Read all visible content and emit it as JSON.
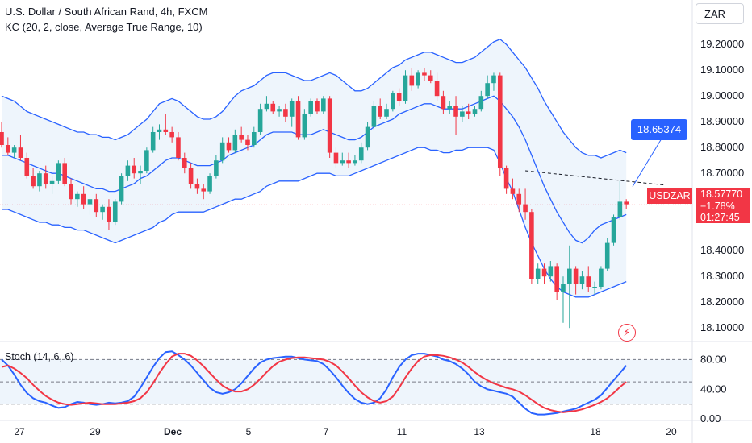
{
  "header": {
    "title": "U.S. Dollar / South African Rand, 4h, FXCM",
    "indicator_label": "KC (20, 2, close, Average True Range, 10)",
    "oscillator_label": "Stoch (14, 6, 6)",
    "currency_button": "ZAR"
  },
  "price_labels": {
    "symbol": "USDZAR",
    "last_price": "18.57770",
    "change": "−1.78%",
    "countdown": "01:27:45",
    "callout_value": "18.65374"
  },
  "colors": {
    "up": "#26a69a",
    "down": "#f23645",
    "band": "#2962ff",
    "band_fill": "#e8f1fb",
    "stoch_k": "#2962ff",
    "stoch_d": "#f23645"
  },
  "chart_data": [
    {
      "type": "candlestick",
      "title": "U.S. Dollar / South African Rand, 4h, FXCM",
      "y_ticks": [
        "19.20000",
        "19.10000",
        "19.00000",
        "18.90000",
        "18.80000",
        "18.70000",
        "18.60000",
        "18.40000",
        "18.30000",
        "18.20000",
        "18.10000"
      ],
      "x_ticks": [
        "27",
        "29",
        "Dec",
        "5",
        "7",
        "11",
        "13",
        "18",
        "20"
      ],
      "ylim": [
        18.06,
        19.26
      ],
      "current_price": 18.5777,
      "trendline_points": [
        18.71,
        18.655
      ],
      "candles": [
        [
          18.86,
          18.9,
          18.8,
          18.81
        ],
        [
          18.81,
          18.84,
          18.77,
          18.78
        ],
        [
          18.78,
          18.81,
          18.76,
          18.8
        ],
        [
          18.8,
          18.85,
          18.75,
          18.76
        ],
        [
          18.76,
          18.78,
          18.68,
          18.69
        ],
        [
          18.69,
          18.72,
          18.64,
          18.65
        ],
        [
          18.65,
          18.71,
          18.63,
          18.7
        ],
        [
          18.7,
          18.73,
          18.64,
          18.66
        ],
        [
          18.66,
          18.69,
          18.62,
          18.67
        ],
        [
          18.67,
          18.75,
          18.66,
          18.74
        ],
        [
          18.74,
          18.76,
          18.65,
          18.66
        ],
        [
          18.66,
          18.68,
          18.58,
          18.6
        ],
        [
          18.6,
          18.63,
          18.57,
          18.62
        ],
        [
          18.62,
          18.65,
          18.56,
          18.58
        ],
        [
          18.58,
          18.61,
          18.54,
          18.6
        ],
        [
          18.6,
          18.62,
          18.53,
          18.55
        ],
        [
          18.55,
          18.58,
          18.52,
          18.57
        ],
        [
          18.57,
          18.6,
          18.48,
          18.51
        ],
        [
          18.51,
          18.6,
          18.5,
          18.59
        ],
        [
          18.59,
          18.7,
          18.58,
          18.69
        ],
        [
          18.69,
          18.75,
          18.67,
          18.73
        ],
        [
          18.73,
          18.76,
          18.68,
          18.7
        ],
        [
          18.7,
          18.73,
          18.66,
          18.71
        ],
        [
          18.71,
          18.8,
          18.7,
          18.79
        ],
        [
          18.79,
          18.88,
          18.78,
          18.86
        ],
        [
          18.86,
          18.89,
          18.83,
          18.87
        ],
        [
          18.87,
          18.93,
          18.85,
          18.86
        ],
        [
          18.86,
          18.88,
          18.82,
          18.84
        ],
        [
          18.84,
          18.86,
          18.75,
          18.76
        ],
        [
          18.76,
          18.78,
          18.7,
          18.72
        ],
        [
          18.72,
          18.74,
          18.64,
          18.66
        ],
        [
          18.66,
          18.68,
          18.62,
          18.64
        ],
        [
          18.64,
          18.66,
          18.6,
          18.63
        ],
        [
          18.63,
          18.7,
          18.62,
          18.69
        ],
        [
          18.69,
          18.77,
          18.68,
          18.75
        ],
        [
          18.75,
          18.84,
          18.74,
          18.82
        ],
        [
          18.82,
          18.84,
          18.78,
          18.79
        ],
        [
          18.79,
          18.87,
          18.78,
          18.85
        ],
        [
          18.85,
          18.88,
          18.82,
          18.83
        ],
        [
          18.83,
          18.85,
          18.79,
          18.81
        ],
        [
          18.81,
          18.88,
          18.8,
          18.86
        ],
        [
          18.86,
          18.97,
          18.85,
          18.95
        ],
        [
          18.95,
          19.0,
          18.94,
          18.97
        ],
        [
          18.97,
          18.98,
          18.93,
          18.94
        ],
        [
          18.94,
          18.96,
          18.92,
          18.95
        ],
        [
          18.95,
          18.97,
          18.9,
          18.92
        ],
        [
          18.92,
          18.99,
          18.88,
          18.98
        ],
        [
          18.98,
          19.0,
          18.83,
          18.84
        ],
        [
          18.84,
          18.95,
          18.83,
          18.93
        ],
        [
          18.93,
          18.99,
          18.92,
          18.98
        ],
        [
          18.98,
          18.99,
          18.93,
          18.94
        ],
        [
          18.94,
          19.0,
          18.93,
          18.99
        ],
        [
          18.99,
          19.0,
          18.76,
          18.78
        ],
        [
          18.78,
          18.8,
          18.72,
          18.74
        ],
        [
          18.74,
          18.78,
          18.73,
          18.75
        ],
        [
          18.75,
          18.78,
          18.72,
          18.74
        ],
        [
          18.74,
          18.77,
          18.73,
          18.75
        ],
        [
          18.75,
          18.82,
          18.74,
          18.8
        ],
        [
          18.8,
          18.9,
          18.79,
          18.88
        ],
        [
          18.88,
          18.98,
          18.87,
          18.96
        ],
        [
          18.96,
          18.99,
          18.91,
          18.92
        ],
        [
          18.92,
          18.97,
          18.91,
          18.95
        ],
        [
          18.95,
          19.02,
          18.94,
          19.01
        ],
        [
          19.01,
          19.03,
          18.96,
          18.98
        ],
        [
          18.98,
          19.1,
          18.97,
          19.08
        ],
        [
          19.08,
          19.11,
          19.02,
          19.04
        ],
        [
          19.04,
          19.1,
          19.03,
          19.09
        ],
        [
          19.09,
          19.11,
          19.06,
          19.08
        ],
        [
          19.08,
          19.1,
          19.05,
          19.06
        ],
        [
          19.06,
          19.09,
          18.98,
          19.0
        ],
        [
          19.0,
          19.02,
          18.93,
          18.95
        ],
        [
          18.95,
          18.98,
          18.93,
          18.96
        ],
        [
          18.96,
          19.0,
          18.85,
          18.92
        ],
        [
          18.92,
          18.96,
          18.9,
          18.94
        ],
        [
          18.94,
          18.97,
          18.91,
          18.93
        ],
        [
          18.93,
          18.96,
          18.92,
          18.95
        ],
        [
          18.95,
          19.02,
          18.94,
          19.0
        ],
        [
          19.0,
          19.08,
          18.99,
          19.05
        ],
        [
          19.05,
          19.09,
          19.02,
          19.08
        ],
        [
          19.08,
          19.09,
          18.69,
          18.72
        ],
        [
          18.72,
          18.73,
          18.62,
          18.64
        ],
        [
          18.64,
          18.68,
          18.6,
          18.62
        ],
        [
          18.62,
          18.64,
          18.55,
          18.58
        ],
        [
          18.58,
          18.64,
          18.52,
          18.55
        ],
        [
          18.55,
          18.56,
          18.27,
          18.29
        ],
        [
          18.29,
          18.35,
          18.27,
          18.33
        ],
        [
          18.33,
          18.35,
          18.27,
          18.3
        ],
        [
          18.3,
          18.36,
          18.28,
          18.34
        ],
        [
          18.34,
          18.35,
          18.21,
          18.24
        ],
        [
          18.24,
          18.3,
          18.12,
          18.27
        ],
        [
          18.27,
          18.42,
          18.1,
          18.33
        ],
        [
          18.33,
          18.34,
          18.23,
          18.27
        ],
        [
          18.27,
          18.32,
          18.25,
          18.3
        ],
        [
          18.3,
          18.34,
          18.24,
          18.26
        ],
        [
          18.26,
          18.28,
          18.23,
          18.26
        ],
        [
          18.26,
          18.34,
          18.25,
          18.33
        ],
        [
          18.33,
          18.45,
          18.32,
          18.43
        ],
        [
          18.43,
          18.54,
          18.42,
          18.53
        ],
        [
          18.53,
          18.67,
          18.52,
          18.59
        ],
        [
          18.59,
          18.6,
          18.56,
          18.58
        ]
      ],
      "keltner": {
        "upper": [
          19.0,
          18.99,
          18.98,
          18.96,
          18.94,
          18.93,
          18.92,
          18.91,
          18.9,
          18.89,
          18.88,
          18.87,
          18.86,
          18.86,
          18.85,
          18.85,
          18.84,
          18.84,
          18.83,
          18.84,
          18.85,
          18.87,
          18.89,
          18.91,
          18.94,
          18.97,
          18.98,
          18.99,
          18.98,
          18.96,
          18.94,
          18.92,
          18.91,
          18.91,
          18.92,
          18.94,
          18.97,
          19.0,
          19.02,
          19.03,
          19.04,
          19.06,
          19.08,
          19.09,
          19.09,
          19.09,
          19.08,
          19.07,
          19.06,
          19.06,
          19.07,
          19.08,
          19.09,
          19.08,
          19.06,
          19.04,
          19.02,
          19.02,
          19.03,
          19.05,
          19.07,
          19.09,
          19.11,
          19.12,
          19.14,
          19.15,
          19.16,
          19.17,
          19.17,
          19.16,
          19.15,
          19.14,
          19.13,
          19.13,
          19.14,
          19.15,
          19.17,
          19.19,
          19.21,
          19.22,
          19.2,
          19.17,
          19.14,
          19.11,
          19.07,
          19.03,
          18.98,
          18.94,
          18.9,
          18.86,
          18.83,
          18.8,
          18.78,
          18.77,
          18.77,
          18.76,
          18.77,
          18.78,
          18.79,
          18.78
        ],
        "middle": [
          18.77,
          18.77,
          18.76,
          18.75,
          18.74,
          18.73,
          18.72,
          18.71,
          18.7,
          18.7,
          18.69,
          18.68,
          18.67,
          18.66,
          18.65,
          18.64,
          18.64,
          18.63,
          18.63,
          18.64,
          18.65,
          18.66,
          18.68,
          18.69,
          18.71,
          18.73,
          18.75,
          18.76,
          18.76,
          18.75,
          18.74,
          18.73,
          18.73,
          18.73,
          18.74,
          18.75,
          18.77,
          18.78,
          18.79,
          18.8,
          18.81,
          18.83,
          18.85,
          18.86,
          18.86,
          18.86,
          18.86,
          18.85,
          18.85,
          18.85,
          18.86,
          18.87,
          18.86,
          18.85,
          18.84,
          18.83,
          18.83,
          18.84,
          18.86,
          18.88,
          18.89,
          18.9,
          18.91,
          18.93,
          18.94,
          18.95,
          18.96,
          18.97,
          18.97,
          18.96,
          18.95,
          18.95,
          18.95,
          18.95,
          18.96,
          18.97,
          18.98,
          18.99,
          19.0,
          18.98,
          18.95,
          18.92,
          18.88,
          18.83,
          18.77,
          18.71,
          18.65,
          18.6,
          18.55,
          18.51,
          18.47,
          18.44,
          18.43,
          18.45,
          18.48,
          18.5,
          18.51,
          18.52,
          18.53,
          18.54
        ],
        "lower": [
          18.56,
          18.56,
          18.55,
          18.54,
          18.53,
          18.52,
          18.51,
          18.51,
          18.5,
          18.5,
          18.49,
          18.49,
          18.48,
          18.48,
          18.47,
          18.46,
          18.45,
          18.44,
          18.43,
          18.44,
          18.45,
          18.46,
          18.47,
          18.48,
          18.49,
          18.51,
          18.52,
          18.54,
          18.55,
          18.55,
          18.55,
          18.55,
          18.55,
          18.56,
          18.57,
          18.58,
          18.59,
          18.6,
          18.6,
          18.61,
          18.62,
          18.63,
          18.65,
          18.66,
          18.67,
          18.67,
          18.67,
          18.67,
          18.68,
          18.69,
          18.7,
          18.7,
          18.7,
          18.69,
          18.69,
          18.69,
          18.7,
          18.71,
          18.72,
          18.73,
          18.74,
          18.75,
          18.76,
          18.77,
          18.78,
          18.79,
          18.8,
          18.8,
          18.79,
          18.79,
          18.78,
          18.78,
          18.79,
          18.79,
          18.8,
          18.8,
          18.8,
          18.8,
          18.79,
          18.74,
          18.68,
          18.63,
          18.56,
          18.49,
          18.43,
          18.38,
          18.33,
          18.29,
          18.26,
          18.24,
          18.23,
          18.22,
          18.22,
          18.22,
          18.23,
          18.24,
          18.25,
          18.26,
          18.27,
          18.28
        ]
      }
    },
    {
      "type": "line",
      "title": "Stoch (14, 6, 6)",
      "y_ticks": [
        "80.00",
        "40.00",
        "0.00"
      ],
      "ylim": [
        -2,
        100
      ],
      "bands": [
        80,
        50,
        20
      ],
      "series": [
        {
          "name": "%K",
          "values": [
            80,
            72,
            60,
            46,
            35,
            28,
            24,
            22,
            18,
            15,
            16,
            20,
            23,
            22,
            20,
            19,
            20,
            22,
            21,
            22,
            24,
            30,
            42,
            56,
            70,
            82,
            90,
            91,
            86,
            80,
            72,
            62,
            52,
            42,
            36,
            34,
            36,
            40,
            48,
            58,
            68,
            76,
            80,
            82,
            83,
            84,
            84,
            82,
            80,
            79,
            78,
            74,
            66,
            56,
            45,
            35,
            27,
            22,
            20,
            22,
            28,
            40,
            56,
            70,
            80,
            86,
            88,
            88,
            86,
            84,
            80,
            78,
            74,
            68,
            60,
            50,
            44,
            40,
            38,
            36,
            34,
            30,
            22,
            14,
            8,
            6,
            6,
            7,
            8,
            10,
            12,
            14,
            18,
            22,
            26,
            32,
            42,
            52,
            62,
            72
          ]
        },
        {
          "name": "%D",
          "values": [
            70,
            72,
            68,
            62,
            55,
            46,
            38,
            31,
            26,
            22,
            20,
            19,
            20,
            21,
            22,
            21,
            20,
            20,
            20,
            21,
            22,
            24,
            28,
            36,
            48,
            62,
            74,
            84,
            88,
            88,
            85,
            79,
            71,
            62,
            53,
            45,
            40,
            37,
            37,
            40,
            46,
            54,
            63,
            71,
            77,
            80,
            82,
            83,
            83,
            82,
            81,
            80,
            77,
            72,
            64,
            55,
            45,
            36,
            29,
            24,
            22,
            24,
            30,
            42,
            56,
            68,
            78,
            84,
            86,
            86,
            85,
            83,
            80,
            76,
            70,
            63,
            57,
            52,
            48,
            45,
            42,
            40,
            37,
            32,
            26,
            20,
            15,
            12,
            10,
            9,
            10,
            11,
            13,
            16,
            19,
            23,
            28,
            35,
            43,
            50
          ]
        }
      ]
    }
  ]
}
